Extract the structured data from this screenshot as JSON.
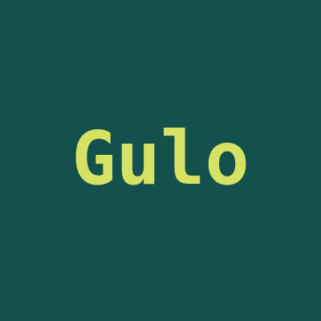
{
  "logo": {
    "text": "Gulo"
  },
  "colors": {
    "background": "#15514c",
    "text": "#d5e263"
  }
}
